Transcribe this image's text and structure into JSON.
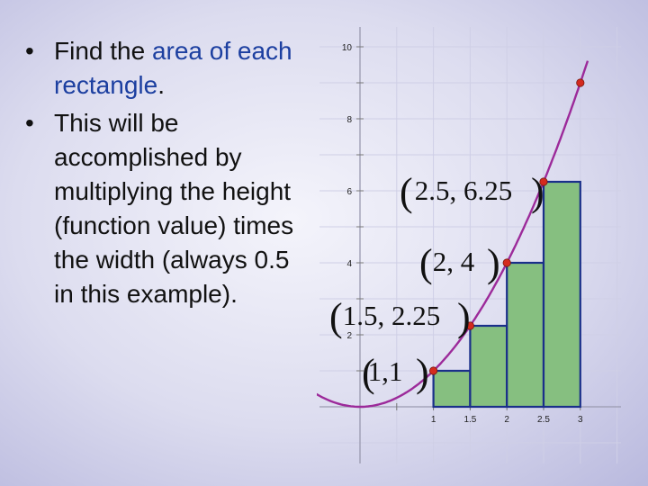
{
  "bullets": [
    {
      "pre": "Find the ",
      "highlight": "area of each rectangle",
      "post": "."
    },
    {
      "pre": "This will be accomplished by multiplying the height (function value) times the width (always 0.5 in this example).",
      "highlight": "",
      "post": ""
    }
  ],
  "colors": {
    "curve": "#9c2a9a",
    "bar_fill": "#86bf80",
    "bar_stroke": "#1a2f8a",
    "point": "#d42a1e",
    "highlight_text": "#1c3fa0"
  },
  "chart_data": {
    "type": "bar",
    "function": "y = x^2",
    "bar_width": 0.5,
    "bars": [
      {
        "x_left": 1.0,
        "height": 1
      },
      {
        "x_left": 1.5,
        "height": 2.25
      },
      {
        "x_left": 2.0,
        "height": 4
      },
      {
        "x_left": 2.5,
        "height": 6.25
      }
    ],
    "points": [
      {
        "x": 1.0,
        "y": 1
      },
      {
        "x": 1.5,
        "y": 2.25
      },
      {
        "x": 2.0,
        "y": 4
      },
      {
        "x": 2.5,
        "y": 6.25
      },
      {
        "x": 3.0,
        "y": 9
      }
    ],
    "point_labels": [
      "1,1",
      "1.5, 2.25",
      "2, 4",
      "2.5, 6.25"
    ],
    "x_ticks": [
      "1",
      "1.5",
      "2",
      "2.5",
      "3"
    ],
    "y_ticks": [
      "2",
      "4",
      "6",
      "8",
      "10"
    ],
    "xlim": [
      -0.1,
      3.3
    ],
    "ylim": [
      -2,
      10
    ],
    "grid": true
  }
}
